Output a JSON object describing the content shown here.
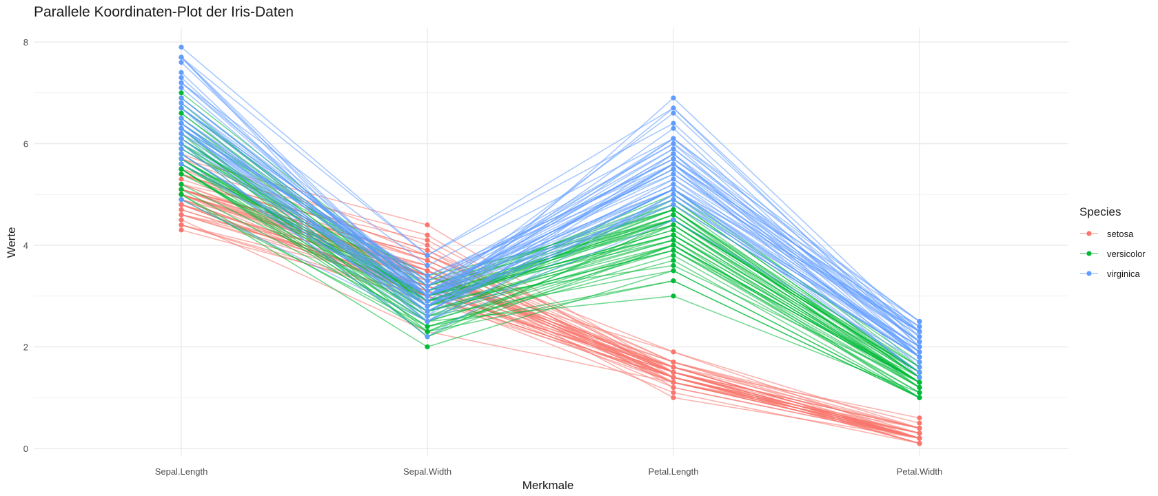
{
  "chart_data": {
    "type": "line",
    "title": "Parallele Koordinaten-Plot der Iris-Daten",
    "xlabel": "Merkmale",
    "ylabel": "Werte",
    "categories": [
      "Sepal.Length",
      "Sepal.Width",
      "Petal.Length",
      "Petal.Width"
    ],
    "ylim": [
      0,
      8
    ],
    "yticks": [
      0,
      2,
      4,
      6,
      8
    ],
    "grid": true,
    "legend": {
      "title": "Species",
      "placement": "right"
    },
    "series": [
      {
        "name": "setosa",
        "color": "#F8766D",
        "values": [
          [
            5.1,
            3.5,
            1.4,
            0.2
          ],
          [
            4.9,
            3.0,
            1.4,
            0.2
          ],
          [
            4.7,
            3.2,
            1.3,
            0.2
          ],
          [
            4.6,
            3.1,
            1.5,
            0.2
          ],
          [
            5.0,
            3.6,
            1.4,
            0.2
          ],
          [
            5.4,
            3.9,
            1.7,
            0.4
          ],
          [
            4.6,
            3.4,
            1.4,
            0.3
          ],
          [
            5.0,
            3.4,
            1.5,
            0.2
          ],
          [
            4.4,
            2.9,
            1.4,
            0.2
          ],
          [
            4.9,
            3.1,
            1.5,
            0.1
          ],
          [
            5.4,
            3.7,
            1.5,
            0.2
          ],
          [
            4.8,
            3.4,
            1.6,
            0.2
          ],
          [
            4.8,
            3.0,
            1.4,
            0.1
          ],
          [
            4.3,
            3.0,
            1.1,
            0.1
          ],
          [
            5.8,
            4.0,
            1.2,
            0.2
          ],
          [
            5.7,
            4.4,
            1.5,
            0.4
          ],
          [
            5.4,
            3.9,
            1.3,
            0.4
          ],
          [
            5.1,
            3.5,
            1.4,
            0.3
          ],
          [
            5.7,
            3.8,
            1.7,
            0.3
          ],
          [
            5.1,
            3.8,
            1.5,
            0.3
          ],
          [
            5.4,
            3.4,
            1.7,
            0.2
          ],
          [
            5.1,
            3.7,
            1.5,
            0.4
          ],
          [
            4.6,
            3.6,
            1.0,
            0.2
          ],
          [
            5.1,
            3.3,
            1.7,
            0.5
          ],
          [
            4.8,
            3.4,
            1.9,
            0.2
          ],
          [
            5.0,
            3.0,
            1.6,
            0.2
          ],
          [
            5.0,
            3.4,
            1.6,
            0.4
          ],
          [
            5.2,
            3.5,
            1.5,
            0.2
          ],
          [
            5.2,
            3.4,
            1.4,
            0.2
          ],
          [
            4.7,
            3.2,
            1.6,
            0.2
          ],
          [
            4.8,
            3.1,
            1.6,
            0.2
          ],
          [
            5.4,
            3.4,
            1.5,
            0.4
          ],
          [
            5.2,
            4.1,
            1.5,
            0.1
          ],
          [
            5.5,
            4.2,
            1.4,
            0.2
          ],
          [
            4.9,
            3.1,
            1.5,
            0.2
          ],
          [
            5.0,
            3.2,
            1.2,
            0.2
          ],
          [
            5.5,
            3.5,
            1.3,
            0.2
          ],
          [
            4.9,
            3.6,
            1.4,
            0.1
          ],
          [
            4.4,
            3.0,
            1.3,
            0.2
          ],
          [
            5.1,
            3.4,
            1.5,
            0.2
          ],
          [
            5.0,
            3.5,
            1.3,
            0.3
          ],
          [
            4.5,
            2.3,
            1.3,
            0.3
          ],
          [
            4.4,
            3.2,
            1.3,
            0.2
          ],
          [
            5.0,
            3.5,
            1.6,
            0.6
          ],
          [
            5.1,
            3.8,
            1.9,
            0.4
          ],
          [
            4.8,
            3.0,
            1.4,
            0.3
          ],
          [
            5.1,
            3.8,
            1.6,
            0.2
          ],
          [
            4.6,
            3.2,
            1.4,
            0.2
          ],
          [
            5.3,
            3.7,
            1.5,
            0.2
          ],
          [
            5.0,
            3.3,
            1.4,
            0.2
          ]
        ]
      },
      {
        "name": "versicolor",
        "color": "#00BA38",
        "values": [
          [
            7.0,
            3.2,
            4.7,
            1.4
          ],
          [
            6.4,
            3.2,
            4.5,
            1.5
          ],
          [
            6.9,
            3.1,
            4.9,
            1.5
          ],
          [
            5.5,
            2.3,
            4.0,
            1.3
          ],
          [
            6.5,
            2.8,
            4.6,
            1.5
          ],
          [
            5.7,
            2.8,
            4.5,
            1.3
          ],
          [
            6.3,
            3.3,
            4.7,
            1.6
          ],
          [
            4.9,
            2.4,
            3.3,
            1.0
          ],
          [
            6.6,
            2.9,
            4.6,
            1.3
          ],
          [
            5.2,
            2.7,
            3.9,
            1.4
          ],
          [
            5.0,
            2.0,
            3.5,
            1.0
          ],
          [
            5.9,
            3.0,
            4.2,
            1.5
          ],
          [
            6.0,
            2.2,
            4.0,
            1.0
          ],
          [
            6.1,
            2.9,
            4.7,
            1.4
          ],
          [
            5.6,
            2.9,
            3.6,
            1.3
          ],
          [
            6.7,
            3.1,
            4.4,
            1.4
          ],
          [
            5.6,
            3.0,
            4.5,
            1.5
          ],
          [
            5.8,
            2.7,
            4.1,
            1.0
          ],
          [
            6.2,
            2.2,
            4.5,
            1.5
          ],
          [
            5.6,
            2.5,
            3.9,
            1.1
          ],
          [
            5.9,
            3.2,
            4.8,
            1.8
          ],
          [
            6.1,
            2.8,
            4.0,
            1.3
          ],
          [
            6.3,
            2.5,
            4.9,
            1.5
          ],
          [
            6.1,
            2.8,
            4.7,
            1.2
          ],
          [
            6.4,
            2.9,
            4.3,
            1.3
          ],
          [
            6.6,
            3.0,
            4.4,
            1.4
          ],
          [
            6.8,
            2.8,
            4.8,
            1.4
          ],
          [
            6.7,
            3.0,
            5.0,
            1.7
          ],
          [
            6.0,
            2.9,
            4.5,
            1.5
          ],
          [
            5.7,
            2.6,
            3.5,
            1.0
          ],
          [
            5.5,
            2.4,
            3.8,
            1.1
          ],
          [
            5.5,
            2.4,
            3.7,
            1.0
          ],
          [
            5.8,
            2.7,
            3.9,
            1.2
          ],
          [
            6.0,
            2.7,
            5.1,
            1.6
          ],
          [
            5.4,
            3.0,
            4.5,
            1.5
          ],
          [
            6.0,
            3.4,
            4.5,
            1.6
          ],
          [
            6.7,
            3.1,
            4.7,
            1.5
          ],
          [
            6.3,
            2.3,
            4.4,
            1.3
          ],
          [
            5.6,
            3.0,
            4.1,
            1.3
          ],
          [
            5.5,
            2.5,
            4.0,
            1.3
          ],
          [
            5.5,
            2.6,
            4.4,
            1.2
          ],
          [
            6.1,
            3.0,
            4.6,
            1.4
          ],
          [
            5.8,
            2.6,
            4.0,
            1.2
          ],
          [
            5.0,
            2.3,
            3.3,
            1.0
          ],
          [
            5.6,
            2.7,
            4.2,
            1.3
          ],
          [
            5.7,
            3.0,
            4.2,
            1.2
          ],
          [
            5.7,
            2.9,
            4.2,
            1.3
          ],
          [
            6.2,
            2.9,
            4.3,
            1.3
          ],
          [
            5.1,
            2.5,
            3.0,
            1.1
          ],
          [
            5.7,
            2.8,
            4.1,
            1.3
          ]
        ]
      },
      {
        "name": "virginica",
        "color": "#619CFF",
        "values": [
          [
            6.3,
            3.3,
            6.0,
            2.5
          ],
          [
            5.8,
            2.7,
            5.1,
            1.9
          ],
          [
            7.1,
            3.0,
            5.9,
            2.1
          ],
          [
            6.3,
            2.9,
            5.6,
            1.8
          ],
          [
            6.5,
            3.0,
            5.8,
            2.2
          ],
          [
            7.6,
            3.0,
            6.6,
            2.1
          ],
          [
            4.9,
            2.5,
            4.5,
            1.7
          ],
          [
            7.3,
            2.9,
            6.3,
            1.8
          ],
          [
            6.7,
            2.5,
            5.8,
            1.8
          ],
          [
            7.2,
            3.6,
            6.1,
            2.5
          ],
          [
            6.5,
            3.2,
            5.1,
            2.0
          ],
          [
            6.4,
            2.7,
            5.3,
            1.9
          ],
          [
            6.8,
            3.0,
            5.5,
            2.1
          ],
          [
            5.7,
            2.5,
            5.0,
            2.0
          ],
          [
            5.8,
            2.8,
            5.1,
            2.4
          ],
          [
            6.4,
            3.2,
            5.3,
            2.3
          ],
          [
            6.5,
            3.0,
            5.5,
            1.8
          ],
          [
            7.7,
            3.8,
            6.7,
            2.2
          ],
          [
            7.7,
            2.6,
            6.9,
            2.3
          ],
          [
            6.0,
            2.2,
            5.0,
            1.5
          ],
          [
            6.9,
            3.2,
            5.7,
            2.3
          ],
          [
            5.6,
            2.8,
            4.9,
            2.0
          ],
          [
            7.7,
            2.8,
            6.7,
            2.0
          ],
          [
            6.3,
            2.7,
            4.9,
            1.8
          ],
          [
            6.7,
            3.3,
            5.7,
            2.1
          ],
          [
            7.2,
            3.2,
            6.0,
            1.8
          ],
          [
            6.2,
            2.8,
            4.8,
            1.8
          ],
          [
            6.1,
            3.0,
            4.9,
            1.8
          ],
          [
            6.4,
            2.8,
            5.6,
            2.1
          ],
          [
            7.2,
            3.0,
            5.8,
            1.6
          ],
          [
            7.4,
            2.8,
            6.1,
            1.9
          ],
          [
            7.9,
            3.8,
            6.4,
            2.0
          ],
          [
            6.4,
            2.8,
            5.6,
            2.2
          ],
          [
            6.3,
            2.8,
            5.1,
            1.5
          ],
          [
            6.1,
            2.6,
            5.6,
            1.4
          ],
          [
            7.7,
            3.0,
            6.1,
            2.3
          ],
          [
            6.3,
            3.4,
            5.6,
            2.4
          ],
          [
            6.4,
            3.1,
            5.5,
            1.8
          ],
          [
            6.0,
            3.0,
            4.8,
            1.8
          ],
          [
            6.9,
            3.1,
            5.4,
            2.1
          ],
          [
            6.7,
            3.1,
            5.6,
            2.4
          ],
          [
            6.9,
            3.1,
            5.1,
            2.3
          ],
          [
            5.8,
            2.7,
            5.1,
            1.9
          ],
          [
            6.8,
            3.2,
            5.9,
            2.3
          ],
          [
            6.7,
            3.3,
            5.7,
            2.5
          ],
          [
            6.7,
            3.0,
            5.2,
            2.3
          ],
          [
            6.3,
            2.5,
            5.0,
            1.9
          ],
          [
            6.5,
            3.0,
            5.2,
            2.0
          ],
          [
            6.2,
            3.4,
            5.4,
            2.3
          ],
          [
            5.9,
            3.0,
            5.1,
            1.8
          ]
        ]
      }
    ]
  }
}
